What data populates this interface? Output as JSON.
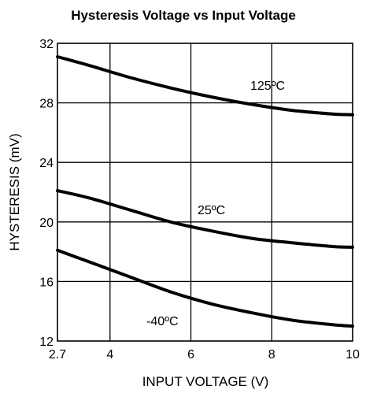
{
  "chart_data": {
    "type": "line",
    "title": "Hysteresis Voltage vs Input Voltage",
    "xlabel": "INPUT VOLTAGE (V)",
    "ylabel": "HYSTERESIS (mV)",
    "xlim": [
      2.7,
      10
    ],
    "ylim": [
      12,
      32
    ],
    "grid": true,
    "x_ticks": [
      2.7,
      4,
      6,
      8,
      10
    ],
    "y_ticks": [
      12,
      16,
      20,
      24,
      28,
      32
    ],
    "x_tick_labels": [
      "2.7",
      "4",
      "6",
      "8",
      "10"
    ],
    "y_tick_labels": [
      "12",
      "16",
      "20",
      "24",
      "28",
      "32"
    ],
    "series": [
      {
        "name": "125ºC",
        "x": [
          2.7,
          3.5,
          4.5,
          5.5,
          6.5,
          7.5,
          8.5,
          9.5,
          10
        ],
        "values": [
          31.1,
          30.5,
          29.7,
          29.0,
          28.4,
          27.9,
          27.5,
          27.25,
          27.2
        ]
      },
      {
        "name": "25ºC",
        "x": [
          2.7,
          3.5,
          4.5,
          5.5,
          6.5,
          7.5,
          8.5,
          9.5,
          10
        ],
        "values": [
          22.1,
          21.6,
          20.8,
          20.0,
          19.4,
          18.9,
          18.6,
          18.35,
          18.3
        ]
      },
      {
        "name": "-40ºC",
        "x": [
          2.7,
          3.5,
          4.5,
          5.5,
          6.5,
          7.5,
          8.5,
          9.5,
          10
        ],
        "values": [
          18.1,
          17.3,
          16.3,
          15.3,
          14.5,
          13.9,
          13.4,
          13.1,
          13.0
        ]
      }
    ]
  }
}
